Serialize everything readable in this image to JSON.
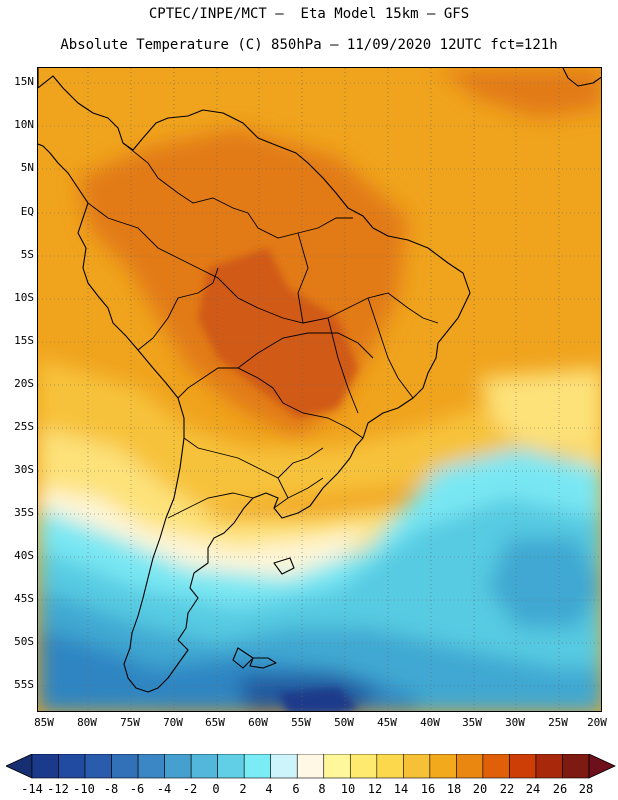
{
  "title_line1": "CPTEC/INPE/MCT –  Eta Model 15km – GFS",
  "title_line2": "Absolute Temperature (C) 850hPa – 11/09/2020 12UTC fct=121h",
  "lat_labels": [
    "15N",
    "10N",
    "5N",
    "EQ",
    "5S",
    "10S",
    "15S",
    "20S",
    "25S",
    "30S",
    "35S",
    "40S",
    "45S",
    "50S",
    "55S"
  ],
  "lon_labels": [
    "85W",
    "80W",
    "75W",
    "70W",
    "65W",
    "60W",
    "55W",
    "50W",
    "45W",
    "40W",
    "35W",
    "30W",
    "25W",
    "20W"
  ],
  "colorbar": {
    "labels": [
      "-14",
      "-12",
      "-10",
      "-8",
      "-6",
      "-4",
      "-2",
      "0",
      "2",
      "4",
      "6",
      "8",
      "10",
      "12",
      "14",
      "16",
      "18",
      "20",
      "22",
      "24",
      "26",
      "28"
    ],
    "colors": [
      "#1b3a8c",
      "#214ba0",
      "#2a5cae",
      "#3270b8",
      "#3b86c4",
      "#45a0cf",
      "#52b7da",
      "#61d0e6",
      "#7aecf6",
      "#cdf4fb",
      "#fef8e4",
      "#fff79a",
      "#fdea6e",
      "#fcd94c",
      "#f6c137",
      "#f2a91c",
      "#e98711",
      "#e0600a",
      "#cd3d06",
      "#a8280c",
      "#7d1a12"
    ],
    "under_color": "#162f72",
    "over_color": "#6e0f1c"
  },
  "field_colors": {
    "hot_core": "#d05a12",
    "hot": "#e27a14",
    "warm": "#f0a31d",
    "mild": "#f7c23a",
    "pale": "#fde27a",
    "cream": "#fef6d8",
    "cyan_light": "#79e7f3",
    "cyan": "#56cbe2",
    "blue_mid": "#3fa8d2",
    "blue": "#2f85c2",
    "blue_dark": "#23599f",
    "blue_darkest": "#1a3b8a",
    "coast": "#000000"
  }
}
